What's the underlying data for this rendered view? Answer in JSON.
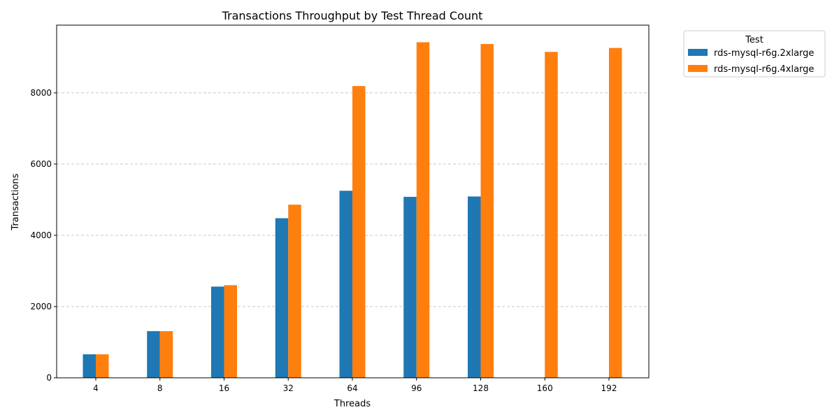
{
  "chart_data": {
    "type": "bar",
    "title": "Transactions Throughput by Test Thread Count",
    "xlabel": "Threads",
    "ylabel": "Transactions",
    "categories": [
      "4",
      "8",
      "16",
      "32",
      "64",
      "96",
      "128",
      "160",
      "192"
    ],
    "series": [
      {
        "name": "rds-mysql-r6g.2xlarge",
        "color": "#1f77b4",
        "values": [
          660,
          1310,
          2560,
          4480,
          5250,
          5080,
          5090,
          null,
          null
        ]
      },
      {
        "name": "rds-mysql-r6g.4xlarge",
        "color": "#ff7f0e",
        "values": [
          660,
          1310,
          2600,
          4860,
          8190,
          9420,
          9370,
          9150,
          9260
        ]
      }
    ],
    "ylim": [
      0,
      9900
    ],
    "yticks": [
      0,
      2000,
      4000,
      6000,
      8000
    ],
    "grid": "y-dashed",
    "legend": {
      "title": "Test",
      "placement": "outside-top-right"
    }
  }
}
